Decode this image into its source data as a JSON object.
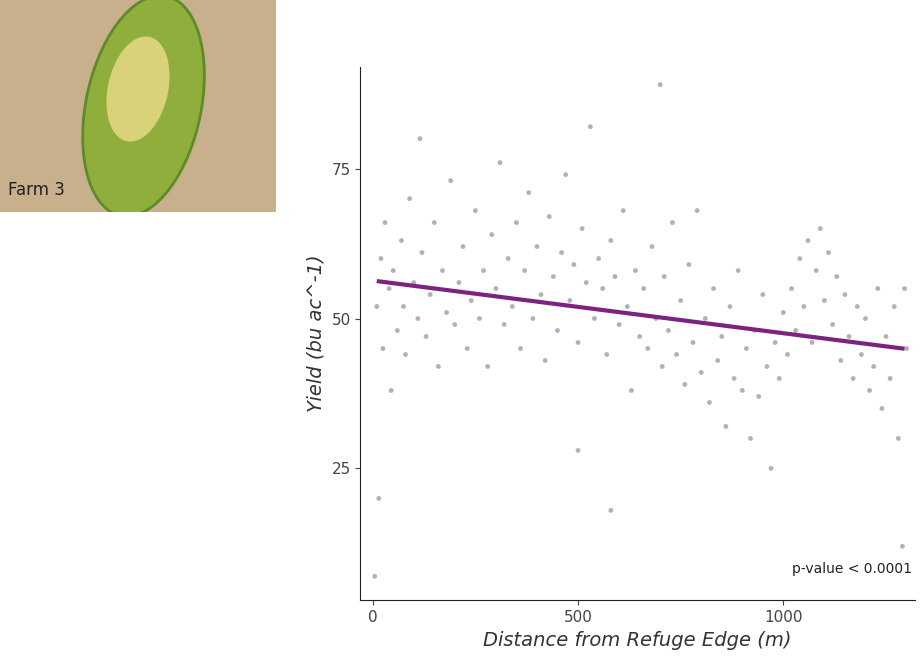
{
  "chart_data": {
    "type": "scatter",
    "inset_label": "Farm 3",
    "x_label": "Distance from Refuge Edge (m)",
    "y_label": "Yield (bu ac^-1)",
    "annotation": "p-value < 0.0001",
    "xlim": [
      -30,
      1320
    ],
    "ylim": [
      3,
      92
    ],
    "xticks": [
      0,
      500,
      1000
    ],
    "yticks": [
      25,
      50,
      75
    ],
    "grid": false,
    "series": [
      {
        "type": "scatter",
        "color": "#000000",
        "marker": "o",
        "x": [
          10,
          20,
          25,
          30,
          40,
          45,
          50,
          60,
          70,
          75,
          80,
          90,
          100,
          110,
          115,
          120,
          130,
          140,
          150,
          160,
          170,
          180,
          190,
          200,
          210,
          220,
          230,
          240,
          250,
          260,
          270,
          280,
          290,
          300,
          310,
          320,
          330,
          340,
          350,
          360,
          370,
          380,
          390,
          400,
          410,
          420,
          430,
          440,
          450,
          460,
          470,
          480,
          490,
          500,
          510,
          520,
          530,
          540,
          550,
          560,
          570,
          580,
          590,
          600,
          610,
          620,
          630,
          640,
          650,
          660,
          670,
          680,
          690,
          700,
          705,
          710,
          720,
          730,
          740,
          750,
          760,
          770,
          780,
          790,
          800,
          810,
          820,
          830,
          840,
          850,
          860,
          870,
          880,
          890,
          900,
          910,
          920,
          930,
          940,
          950,
          960,
          970,
          980,
          990,
          1000,
          1010,
          1020,
          1030,
          1040,
          1050,
          1060,
          1070,
          1080,
          1090,
          1100,
          1110,
          1120,
          1130,
          1140,
          1150,
          1160,
          1170,
          1180,
          1190,
          1200,
          1210,
          1220,
          1230,
          1240,
          1250,
          1260,
          1270,
          1280,
          1290,
          1295,
          1300,
          5,
          15,
          500,
          580
        ],
        "values": [
          52,
          60,
          45,
          66,
          55,
          38,
          58,
          48,
          63,
          52,
          44,
          70,
          56,
          50,
          80,
          61,
          47,
          54,
          66,
          42,
          58,
          51,
          73,
          49,
          56,
          62,
          45,
          53,
          68,
          50,
          58,
          42,
          64,
          55,
          76,
          49,
          60,
          52,
          66,
          45,
          58,
          71,
          50,
          62,
          54,
          43,
          67,
          57,
          48,
          61,
          74,
          53,
          59,
          46,
          65,
          56,
          82,
          50,
          60,
          55,
          44,
          63,
          57,
          49,
          68,
          52,
          38,
          58,
          47,
          55,
          45,
          62,
          50,
          89,
          42,
          57,
          48,
          66,
          44,
          53,
          39,
          59,
          46,
          68,
          41,
          50,
          36,
          55,
          43,
          47,
          32,
          52,
          40,
          58,
          38,
          45,
          30,
          48,
          37,
          54,
          42,
          25,
          46,
          40,
          51,
          44,
          55,
          48,
          60,
          52,
          63,
          46,
          58,
          65,
          53,
          61,
          49,
          57,
          43,
          54,
          47,
          40,
          52,
          44,
          50,
          38,
          42,
          55,
          35,
          47,
          40,
          52,
          30,
          12,
          55,
          45,
          7,
          20,
          28,
          18
        ]
      },
      {
        "type": "line",
        "color": "#7b237f",
        "line_style": "solid",
        "x": [
          15,
          1290
        ],
        "values": [
          56.2,
          45
        ]
      }
    ]
  }
}
